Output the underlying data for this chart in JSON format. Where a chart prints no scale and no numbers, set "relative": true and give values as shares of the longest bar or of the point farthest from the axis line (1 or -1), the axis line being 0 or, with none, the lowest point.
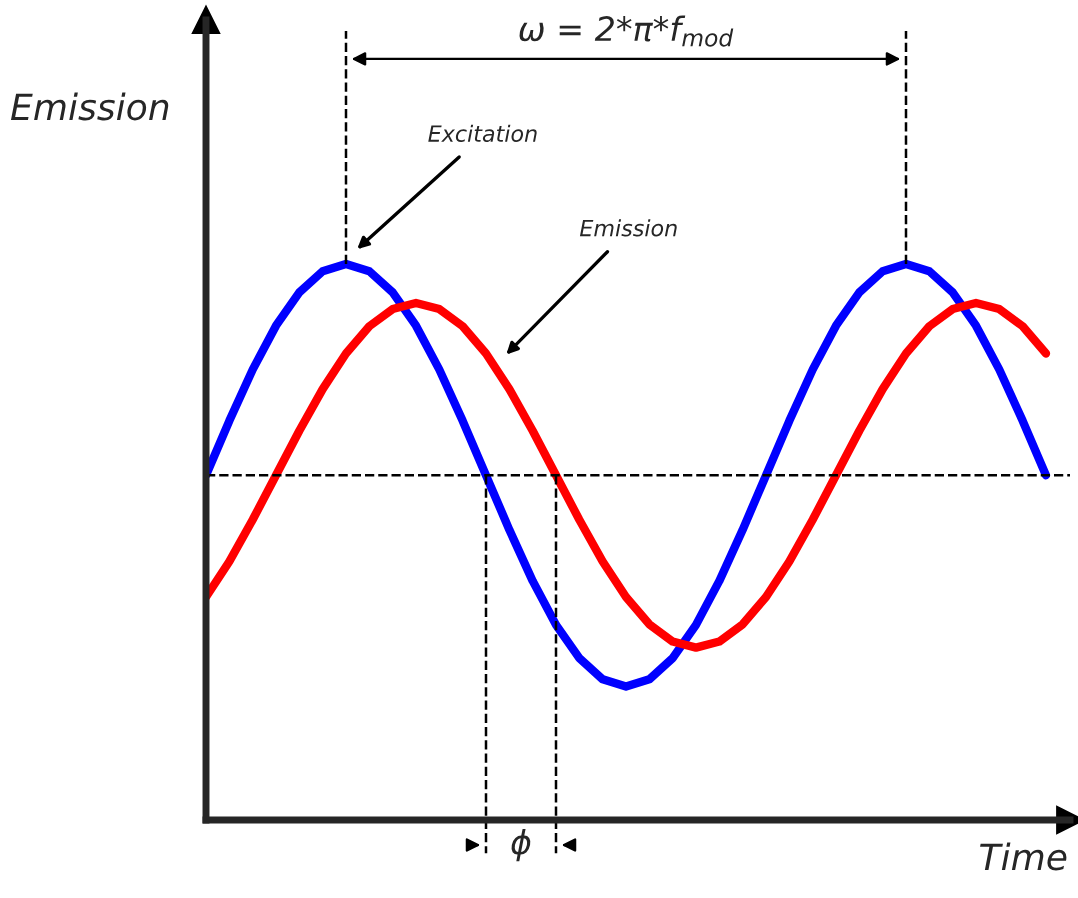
{
  "chart_data": {
    "type": "line",
    "relative": true,
    "xlabel": "Time",
    "ylabel": "Emission",
    "categories": [
      null,
      null,
      null,
      null,
      null,
      null,
      null,
      null,
      null,
      null,
      null,
      null,
      null,
      null,
      null,
      null,
      null,
      null,
      null,
      null,
      null,
      null,
      null,
      null,
      null,
      null,
      null,
      null,
      null,
      null,
      null,
      null,
      null,
      null,
      null,
      null,
      null
    ],
    "series": [
      {
        "color": "#0000ff",
        "values": [
          0.62,
          0.718,
          0.81,
          0.889,
          0.949,
          0.987,
          1.0,
          0.987,
          0.949,
          0.889,
          0.81,
          0.718,
          0.62,
          0.522,
          0.43,
          0.351,
          0.291,
          0.253,
          0.24,
          0.253,
          0.291,
          0.351,
          0.43,
          0.522,
          0.62,
          0.718,
          0.81,
          0.889,
          0.949,
          0.987,
          1.0,
          0.987,
          0.949,
          0.889,
          0.81,
          0.718,
          0.62
        ]
      },
      {
        "color": "#ff0000",
        "values": [
          0.401,
          0.465,
          0.54,
          0.62,
          0.7,
          0.775,
          0.839,
          0.888,
          0.919,
          0.93,
          0.919,
          0.888,
          0.839,
          0.775,
          0.7,
          0.62,
          0.54,
          0.465,
          0.401,
          0.352,
          0.321,
          0.31,
          0.321,
          0.352,
          0.401,
          0.465,
          0.54,
          0.62,
          0.7,
          0.775,
          0.839,
          0.888,
          0.919,
          0.93,
          0.919,
          0.888,
          0.839
        ]
      }
    ],
    "ref_lines": [
      {
        "axis": "y",
        "value": 0.62,
        "line_style": "dashed",
        "color": "#000000"
      }
    ],
    "annotations": [
      "Excitation",
      "Emission",
      "ω = 2*π*f$_{mod}$",
      "ϕ"
    ],
    "legend": false
  }
}
